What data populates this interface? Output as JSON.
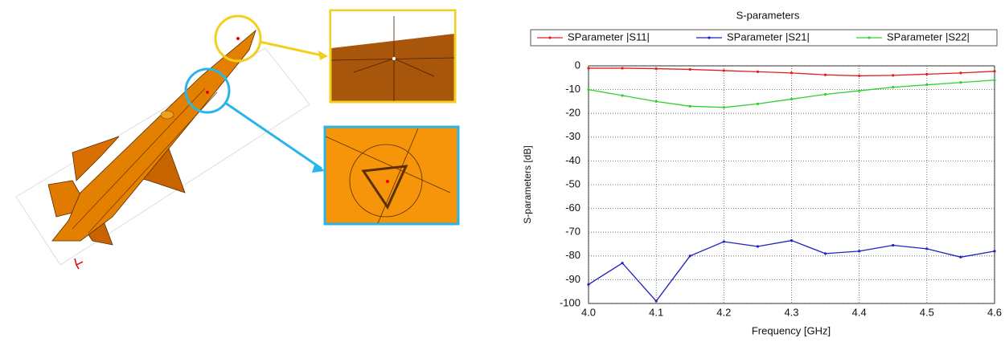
{
  "chart_data": {
    "type": "line",
    "title": "S-parameters",
    "x_label": "Frequency [GHz]",
    "y_label": "S-parameters [dB]",
    "x": [
      4.0,
      4.05,
      4.1,
      4.15,
      4.2,
      4.25,
      4.3,
      4.35,
      4.4,
      4.45,
      4.5,
      4.55,
      4.6
    ],
    "series": [
      {
        "name": "SParameter |S11|",
        "color": "#e02020",
        "values": [
          -1,
          -1,
          -1.2,
          -1.5,
          -2,
          -2.5,
          -3,
          -3.8,
          -4.2,
          -4,
          -3.5,
          -3,
          -2.3
        ]
      },
      {
        "name": "SParameter |S21|",
        "color": "#2020c0",
        "values": [
          -92,
          -83,
          -99,
          -80,
          -74,
          -76,
          -73.5,
          -79,
          -78,
          -75.5,
          -77,
          -80.5,
          -78
        ]
      },
      {
        "name": "SParameter |S22|",
        "color": "#30d030",
        "values": [
          -10,
          -12.5,
          -15,
          -17,
          -17.5,
          -16,
          -14,
          -12,
          -10.5,
          -9,
          -8,
          -7,
          -6
        ]
      }
    ],
    "xlim": [
      4.0,
      4.6
    ],
    "xticks": [
      {
        "value": 4.0,
        "label": "4.0"
      },
      4.1,
      4.2,
      4.3,
      4.4,
      4.5,
      4.6
    ],
    "ylim": [
      -100,
      0
    ],
    "yticks": [
      0,
      -10,
      -20,
      -30,
      -40,
      -50,
      -60,
      -70,
      -80,
      -90,
      -100
    ],
    "grid": true,
    "legend": "top"
  }
}
